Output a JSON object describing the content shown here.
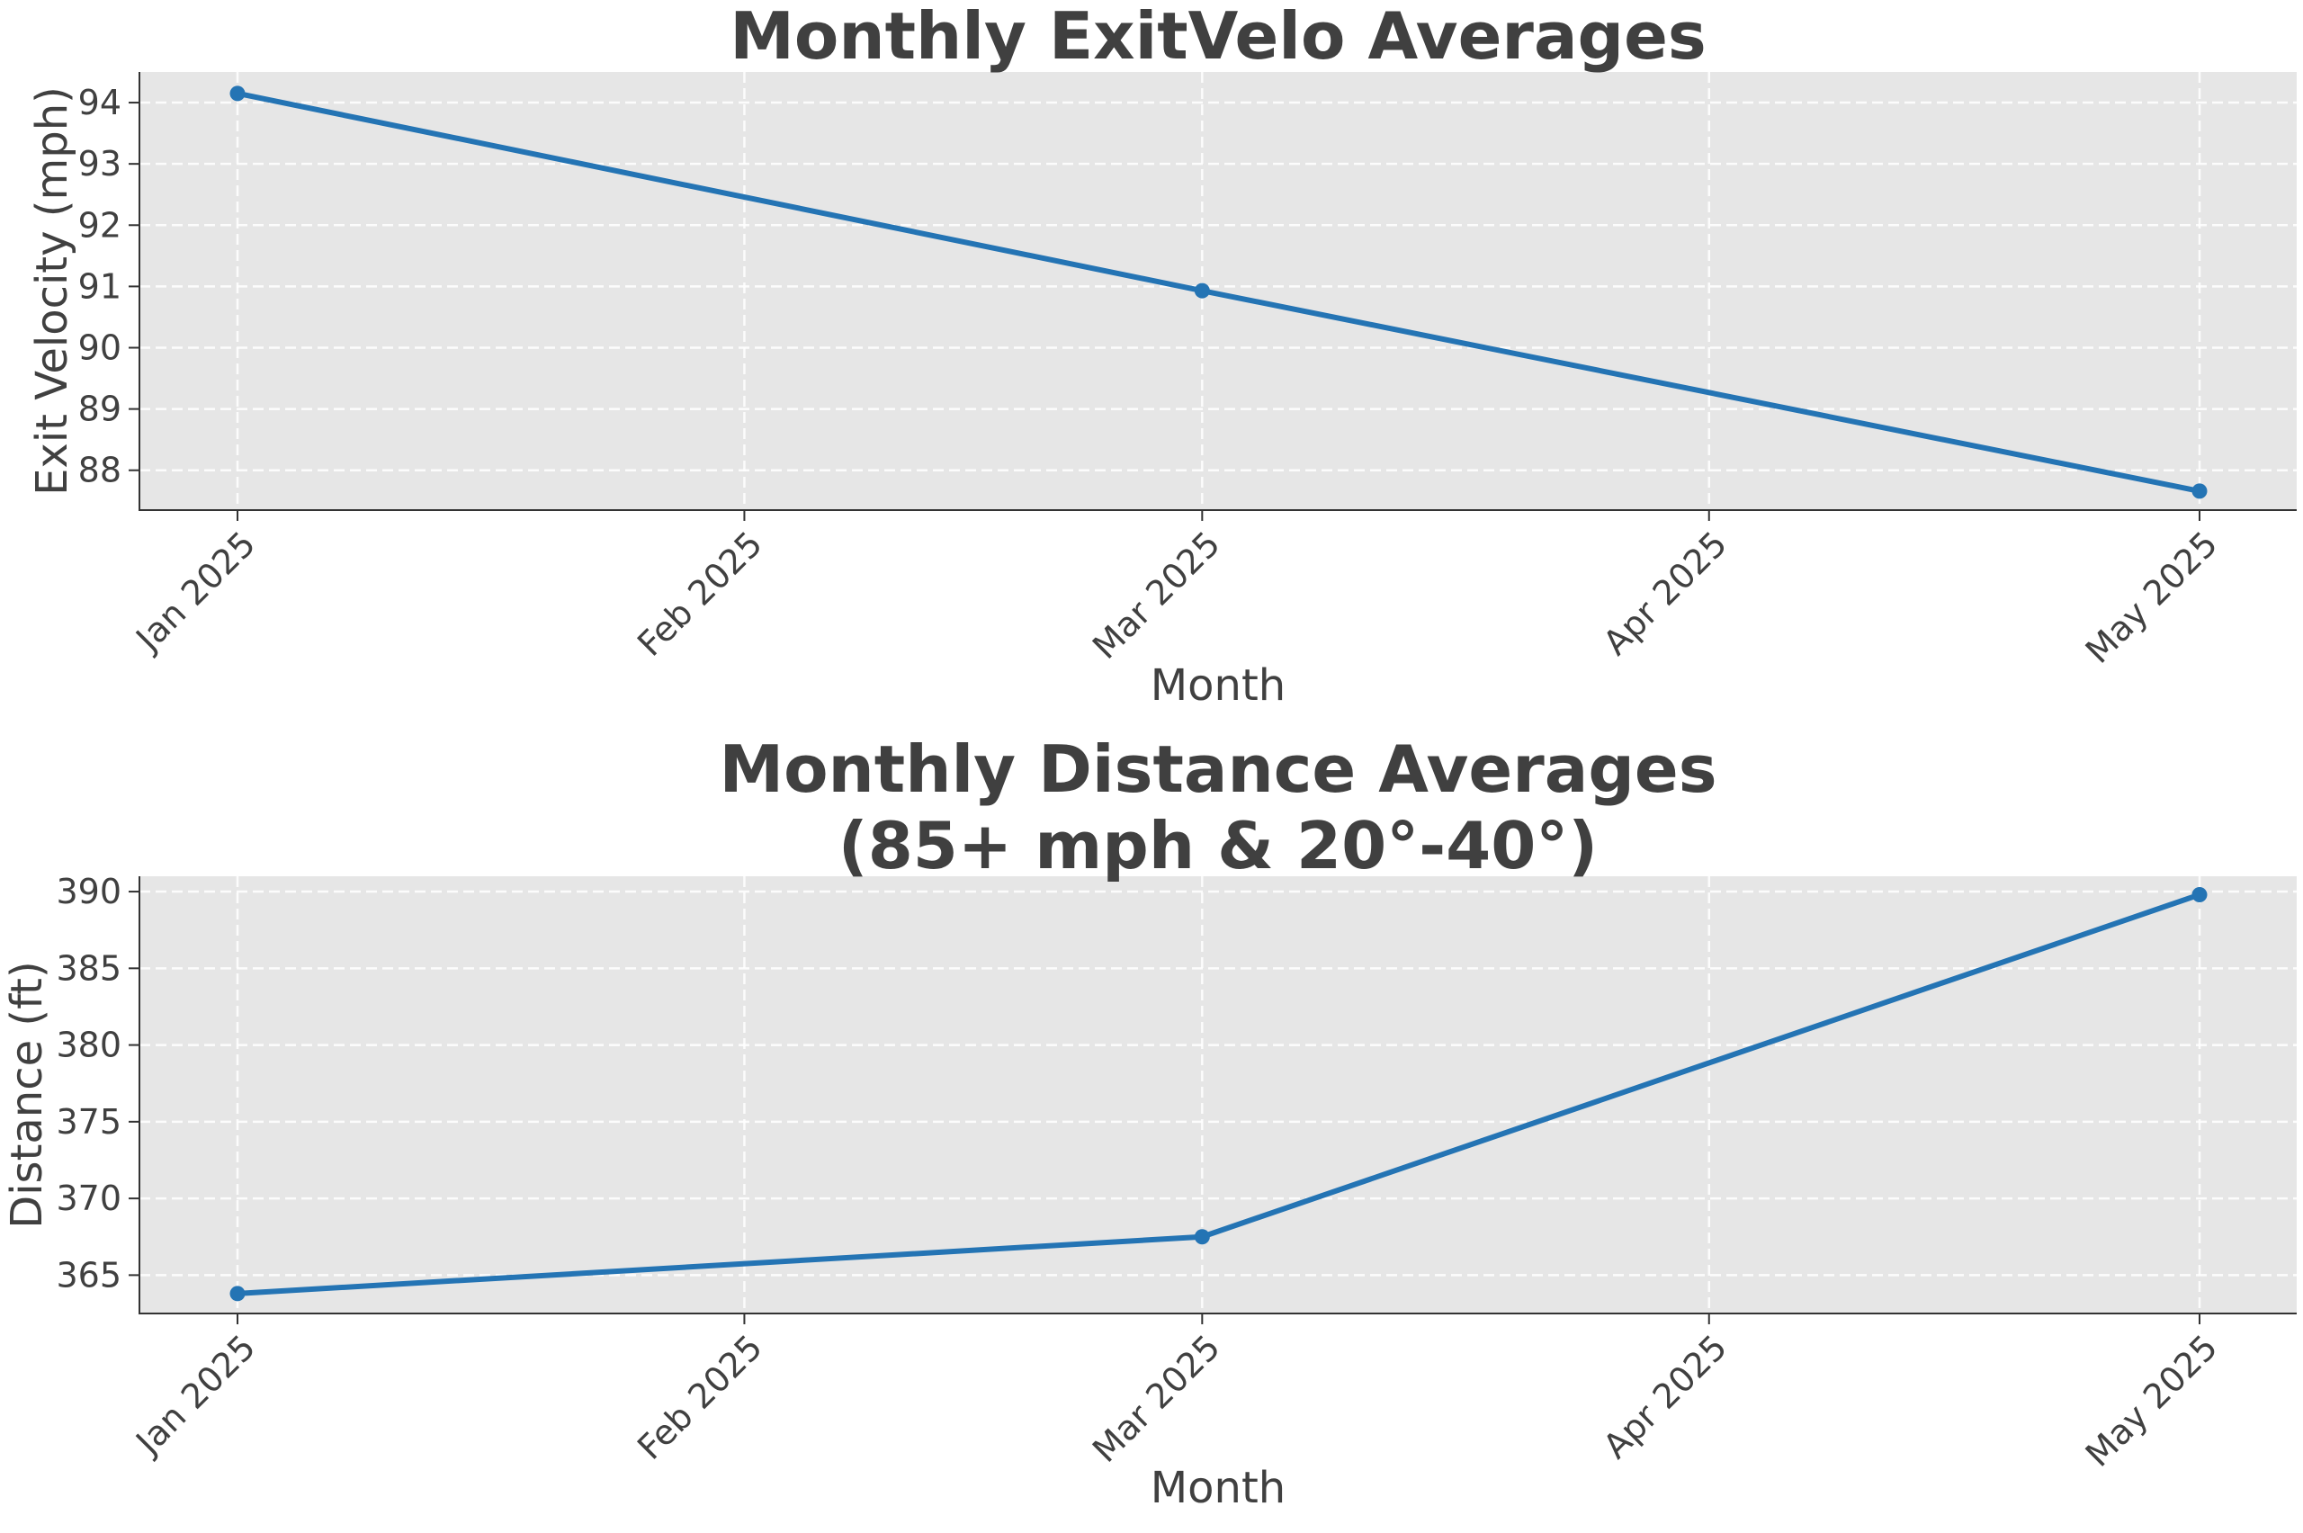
{
  "chart_data": [
    {
      "type": "line",
      "title": "Monthly ExitVelo Averages",
      "xlabel": "Month",
      "ylabel": "Exit Velocity (mph)",
      "x": [
        "2025-01",
        "2025-03",
        "2025-05"
      ],
      "x_ticks": [
        "Jan 2025",
        "Feb 2025",
        "Mar 2025",
        "Apr 2025",
        "May 2025"
      ],
      "y_ticks": [
        88,
        89,
        90,
        91,
        92,
        93,
        94
      ],
      "ylim": [
        87.35,
        94.5
      ],
      "series": [
        {
          "values": [
            94.15,
            90.93,
            87.66
          ]
        }
      ],
      "grid": true,
      "colors": {
        "line": "#2474b4",
        "background": "#e6e6e6"
      }
    },
    {
      "type": "line",
      "title": "Monthly Distance Averages\n(85+ mph & 20°-40°)",
      "xlabel": "Month",
      "ylabel": "Distance (ft)",
      "x": [
        "2025-01",
        "2025-03",
        "2025-05"
      ],
      "x_ticks": [
        "Jan 2025",
        "Feb 2025",
        "Mar 2025",
        "Apr 2025",
        "May 2025"
      ],
      "y_ticks": [
        365,
        370,
        375,
        380,
        385,
        390
      ],
      "ylim": [
        362.5,
        391.0
      ],
      "series": [
        {
          "values": [
            363.8,
            367.5,
            389.8
          ]
        }
      ],
      "grid": true,
      "colors": {
        "line": "#2474b4",
        "background": "#e6e6e6"
      }
    }
  ]
}
